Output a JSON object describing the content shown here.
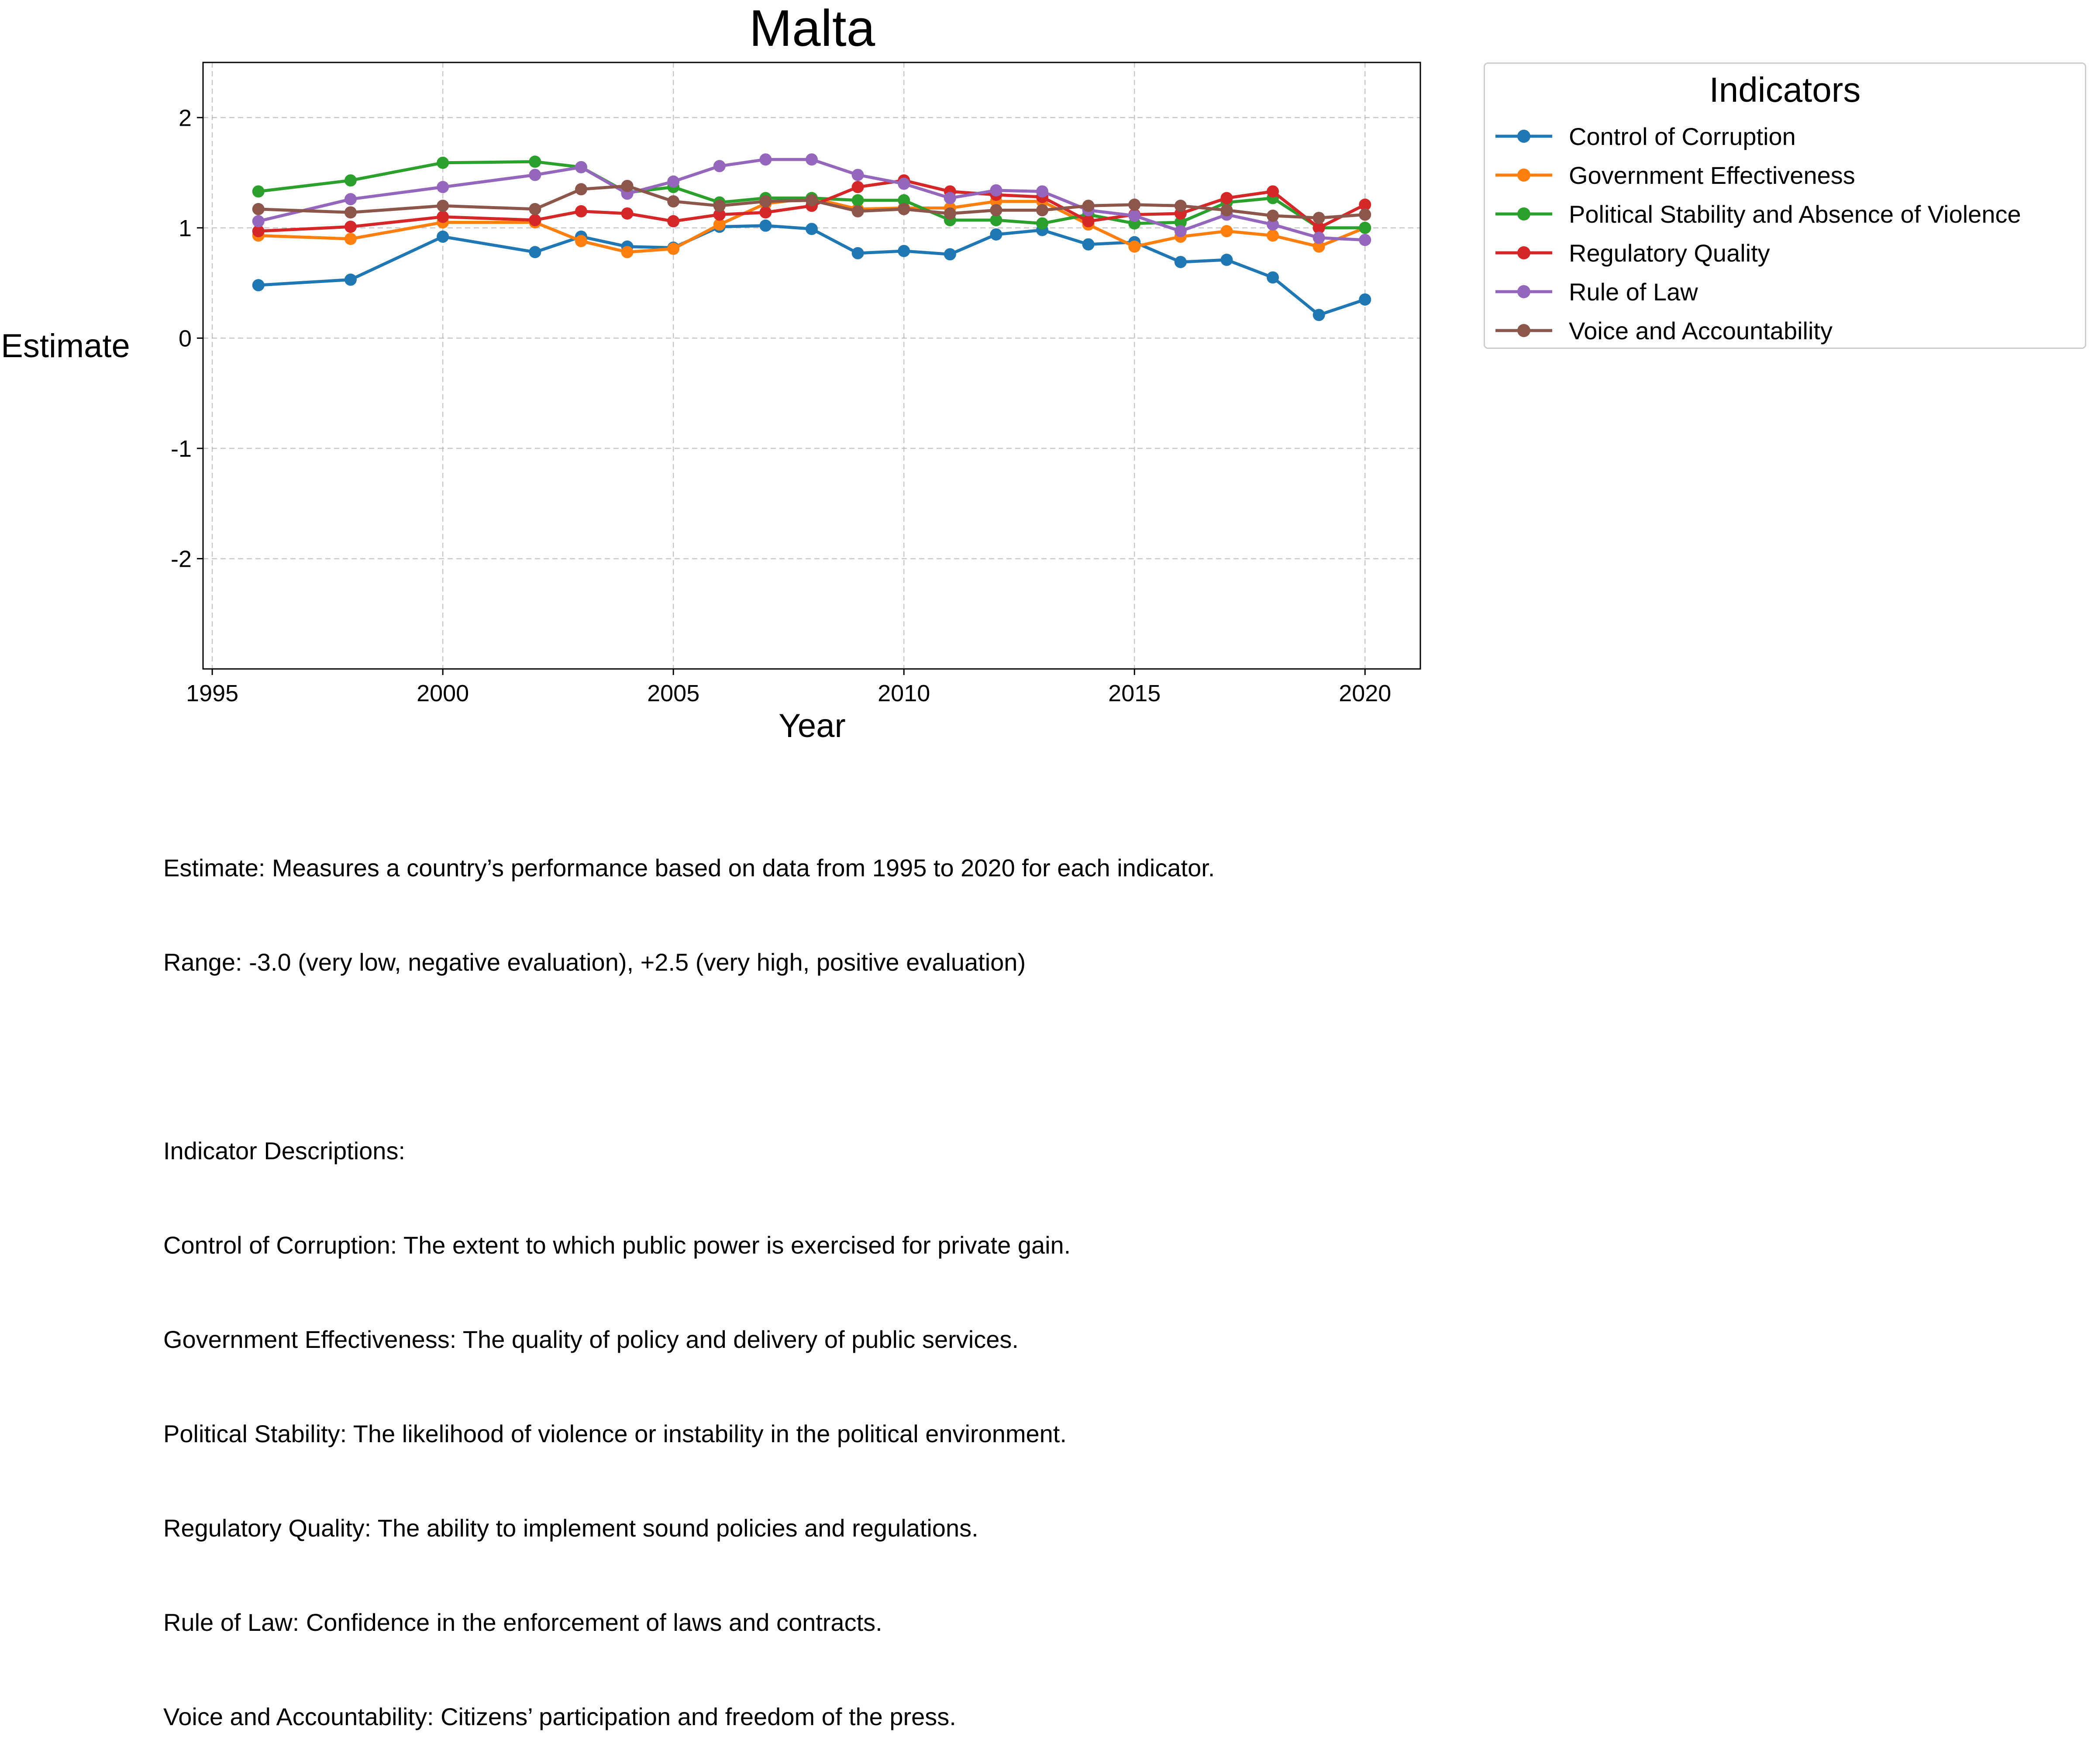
{
  "chart_data": {
    "type": "line",
    "title": "Malta",
    "xlabel": "Year",
    "ylabel": "Estimate",
    "xlim": [
      1994.8,
      2021.2
    ],
    "ylim": [
      -3.0,
      2.5
    ],
    "xticks": [
      1995,
      2000,
      2005,
      2010,
      2015,
      2020
    ],
    "yticks": [
      -2,
      -1,
      0,
      1,
      2
    ],
    "grid": true,
    "legend": {
      "title": "Indicators",
      "placement": "outside-right-top"
    },
    "x": [
      1996,
      1998,
      2000,
      2002,
      2003,
      2004,
      2005,
      2006,
      2007,
      2008,
      2009,
      2010,
      2011,
      2012,
      2013,
      2014,
      2015,
      2016,
      2017,
      2018,
      2019,
      2020
    ],
    "series": [
      {
        "name": "Control of Corruption",
        "color": "#1f77b4",
        "values": [
          0.48,
          0.53,
          0.92,
          0.78,
          0.92,
          0.83,
          0.82,
          1.01,
          1.02,
          0.99,
          0.77,
          0.79,
          0.76,
          0.94,
          0.98,
          0.85,
          0.87,
          0.69,
          0.71,
          0.55,
          0.21,
          0.35
        ]
      },
      {
        "name": "Government Effectiveness",
        "color": "#ff7f0e",
        "values": [
          0.93,
          0.9,
          1.05,
          1.05,
          0.88,
          0.78,
          0.81,
          1.03,
          1.22,
          1.27,
          1.17,
          1.18,
          1.18,
          1.24,
          1.24,
          1.03,
          0.83,
          0.92,
          0.97,
          0.93,
          0.83,
          1.0
        ]
      },
      {
        "name": "Political Stability and Absence of Violence",
        "color": "#2ca02c",
        "values": [
          1.33,
          1.43,
          1.59,
          1.6,
          1.55,
          1.32,
          1.37,
          1.23,
          1.27,
          1.27,
          1.25,
          1.25,
          1.07,
          1.07,
          1.04,
          1.12,
          1.04,
          1.05,
          1.23,
          1.27,
          1.0,
          1.0
        ]
      },
      {
        "name": "Regulatory Quality",
        "color": "#d62728",
        "values": [
          0.97,
          1.01,
          1.1,
          1.07,
          1.15,
          1.13,
          1.06,
          1.12,
          1.14,
          1.2,
          1.37,
          1.43,
          1.33,
          1.3,
          1.28,
          1.06,
          1.12,
          1.13,
          1.27,
          1.33,
          1.0,
          1.21
        ]
      },
      {
        "name": "Rule of Law",
        "color": "#9467bd",
        "values": [
          1.06,
          1.26,
          1.37,
          1.48,
          1.55,
          1.31,
          1.42,
          1.56,
          1.62,
          1.62,
          1.48,
          1.4,
          1.27,
          1.34,
          1.33,
          1.16,
          1.11,
          0.97,
          1.12,
          1.03,
          0.91,
          0.89
        ]
      },
      {
        "name": "Voice and Accountability",
        "color": "#8c564b",
        "values": [
          1.17,
          1.14,
          1.2,
          1.17,
          1.35,
          1.38,
          1.24,
          1.2,
          1.24,
          1.25,
          1.15,
          1.17,
          1.13,
          1.16,
          1.16,
          1.2,
          1.21,
          1.2,
          1.16,
          1.11,
          1.09,
          1.12
        ]
      }
    ]
  },
  "notes": {
    "line1": "Estimate: Measures a country’s performance based on data from 1995 to 2020 for each indicator.",
    "line2": "Range: -3.0 (very low, negative evaluation), +2.5 (very high, positive evaluation)",
    "line3": "",
    "line4": "Indicator Descriptions:",
    "line5": "Control of Corruption: The extent to which public power is exercised for private gain.",
    "line6": "Government Effectiveness: The quality of policy and delivery of public services.",
    "line7": "Political Stability: The likelihood of violence or instability in the political environment.",
    "line8": "Regulatory Quality: The ability to implement sound policies and regulations.",
    "line9": "Rule of Law: Confidence in the enforcement of laws and contracts.",
    "line10": "Voice and Accountability: Citizens’ participation and freedom of the press."
  }
}
